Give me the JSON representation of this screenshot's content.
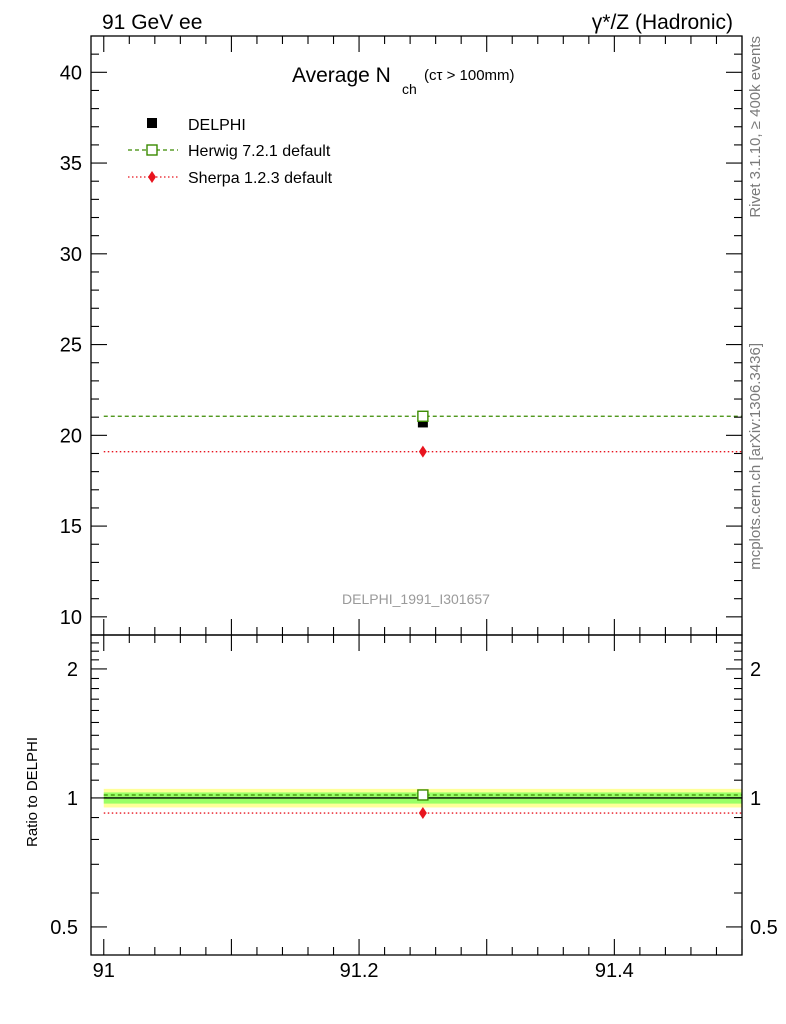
{
  "header": {
    "left": "91 GeV ee",
    "right": "γ*/Z (Hadronic)"
  },
  "title": {
    "main": "Average N",
    "sub": "ch",
    "cut": "(cτ > 100mm)"
  },
  "side_labels": {
    "rivet": "Rivet 3.1.10, ≥ 400k events",
    "source": "mcplots.cern.ch [arXiv:1306.3436]"
  },
  "watermark": "DELPHI_1991_I301657",
  "ratio_ylabel": "Ratio to DELPHI",
  "colors": {
    "data": "#000000",
    "herwig": "#3a8a00",
    "sherpa": "#e8141e",
    "band_inner": "#99ff66",
    "band_outer": "#ffff99"
  },
  "chart_data": [
    {
      "type": "scatter",
      "panel": "main",
      "xlim": [
        90.99,
        91.5
      ],
      "ylim": [
        9,
        42
      ],
      "y_ticks": [
        10,
        15,
        20,
        25,
        30,
        35,
        40
      ],
      "y_tick_labels": [
        "10",
        "15",
        "20",
        "25",
        "30",
        "35",
        "40"
      ],
      "legend_position": "top-left",
      "series": [
        {
          "name": "DELPHI",
          "x": [
            91.25
          ],
          "y": [
            20.71
          ],
          "marker": "filled-square",
          "line": "none"
        },
        {
          "name": "Herwig 7.2.1 default",
          "x": [
            91.25
          ],
          "y": [
            21.05
          ],
          "marker": "open-square",
          "line": "dashed"
        },
        {
          "name": "Sherpa 1.2.3 default",
          "x": [
            91.25
          ],
          "y": [
            19.1
          ],
          "marker": "filled-diamond",
          "line": "dotted"
        }
      ]
    },
    {
      "type": "scatter",
      "panel": "ratio",
      "ylabel": "Ratio to DELPHI",
      "xlim": [
        90.99,
        91.5
      ],
      "ylim": [
        0.43,
        2.4
      ],
      "y_scale": "log",
      "y_ticks": [
        0.5,
        1,
        2
      ],
      "y_tick_labels": [
        "0.5",
        "1",
        "2"
      ],
      "x_ticks": [
        91,
        91.2,
        91.4
      ],
      "x_tick_labels": [
        "91",
        "91.2",
        "91.4"
      ],
      "band_inner": [
        0.97,
        1.03
      ],
      "band_outer": [
        0.95,
        1.05
      ],
      "series": [
        {
          "name": "DELPHI",
          "x": [
            91.25
          ],
          "y": [
            1.0
          ]
        },
        {
          "name": "Herwig 7.2.1 default",
          "x": [
            91.25
          ],
          "y": [
            1.016
          ]
        },
        {
          "name": "Sherpa 1.2.3 default",
          "x": [
            91.25
          ],
          "y": [
            0.922
          ]
        }
      ]
    }
  ]
}
